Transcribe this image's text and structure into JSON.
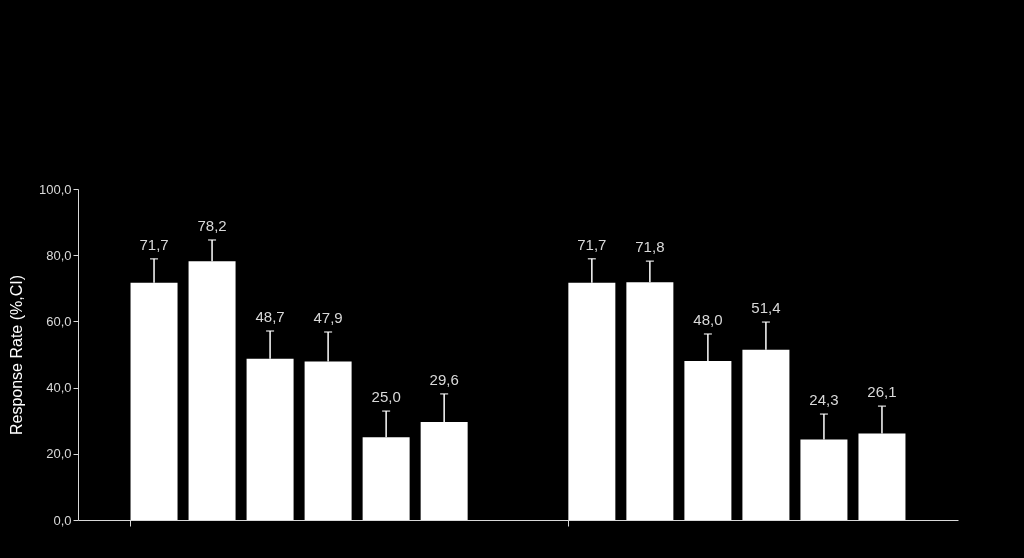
{
  "chart_data": {
    "type": "bar",
    "ylabel": "Response Rate (%,CI)",
    "categories": [
      null,
      null
    ],
    "ylim": [
      0,
      100
    ],
    "yticks": [
      {
        "value": 0,
        "label": "0,0"
      },
      {
        "value": 20,
        "label": "20,0"
      },
      {
        "value": 40,
        "label": "40,0"
      },
      {
        "value": 60,
        "label": "60,0"
      },
      {
        "value": 80,
        "label": "80,0"
      },
      {
        "value": 100,
        "label": "100,0"
      }
    ],
    "tick_labels": "y",
    "series": [
      {
        "color": "#ffffff",
        "values": [
          71.7,
          71.7
        ],
        "errors": [
          7.2,
          7.2
        ],
        "value_labels": [
          "71,7",
          "71,7"
        ]
      },
      {
        "color": "#ffffff",
        "values": [
          78.2,
          71.8
        ],
        "errors": [
          6.4,
          6.4
        ],
        "value_labels": [
          "78,2",
          "71,8"
        ]
      },
      {
        "color": "#ffffff",
        "values": [
          48.7,
          48.0
        ],
        "errors": [
          8.4,
          8.2
        ],
        "value_labels": [
          "48,7",
          "48,0"
        ]
      },
      {
        "color": "#ffffff",
        "values": [
          47.9,
          51.4
        ],
        "errors": [
          8.9,
          8.4
        ],
        "value_labels": [
          "47,9",
          "51,4"
        ]
      },
      {
        "color": "#ffffff",
        "values": [
          25.0,
          24.3
        ],
        "errors": [
          7.9,
          7.7
        ],
        "value_labels": [
          "25,0",
          "24,3"
        ]
      },
      {
        "color": "#ffffff",
        "values": [
          29.6,
          26.1
        ],
        "errors": [
          8.5,
          8.3
        ],
        "value_labels": [
          "29,6",
          "26,1"
        ]
      }
    ]
  }
}
